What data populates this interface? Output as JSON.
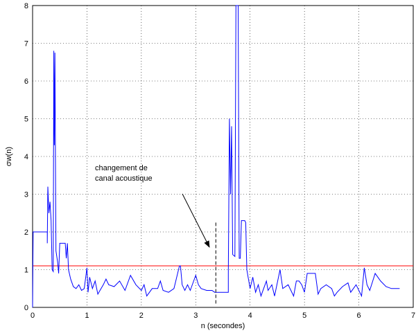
{
  "chart_data": {
    "type": "line",
    "xlabel": "n (secondes)",
    "ylabel": "σw(n)",
    "x": [
      0,
      0.01,
      0.27,
      0.27,
      0.28,
      0.3,
      0.32,
      0.34,
      0.36,
      0.38,
      0.39,
      0.4,
      0.41,
      0.43,
      0.46,
      0.48,
      0.5,
      0.6,
      0.62,
      0.64,
      0.66,
      0.7,
      0.75,
      0.8,
      0.85,
      0.9,
      0.95,
      1.0,
      1.02,
      1.05,
      1.1,
      1.15,
      1.2,
      1.3,
      1.35,
      1.4,
      1.5,
      1.6,
      1.7,
      1.8,
      1.9,
      2.0,
      2.05,
      2.1,
      2.2,
      2.3,
      2.35,
      2.4,
      2.5,
      2.6,
      2.7,
      2.72,
      2.75,
      2.8,
      2.85,
      2.9,
      3.0,
      3.05,
      3.1,
      3.2,
      3.3,
      3.35,
      3.6,
      3.6,
      3.62,
      3.64,
      3.66,
      3.68,
      3.72,
      3.74,
      3.78,
      3.8,
      3.82,
      3.84,
      3.9,
      3.92,
      3.94,
      4.0,
      4.05,
      4.1,
      4.15,
      4.2,
      4.3,
      4.33,
      4.4,
      4.45,
      4.55,
      4.6,
      4.7,
      4.8,
      4.85,
      4.9,
      4.95,
      5.0,
      5.05,
      5.2,
      5.25,
      5.3,
      5.4,
      5.5,
      5.55,
      5.6,
      5.7,
      5.8,
      5.85,
      5.95,
      6.05,
      6.1,
      6.15,
      6.2,
      6.3,
      6.4,
      6.5,
      6.6,
      6.75
    ],
    "series": [
      {
        "color": "#0000ff",
        "values": [
          0,
          2.0,
          2.0,
          1.7,
          3.2,
          2.5,
          2.8,
          2.3,
          1.0,
          0.95,
          6.8,
          4.3,
          6.75,
          1.5,
          1.2,
          0.9,
          1.7,
          1.7,
          1.3,
          1.7,
          1.0,
          0.75,
          0.55,
          0.5,
          0.6,
          0.45,
          0.5,
          1.05,
          0.4,
          0.8,
          0.5,
          0.7,
          0.35,
          0.6,
          0.75,
          0.6,
          0.55,
          0.7,
          0.45,
          0.85,
          0.6,
          0.45,
          0.6,
          0.3,
          0.5,
          0.5,
          0.7,
          0.45,
          0.4,
          0.5,
          1.1,
          1.1,
          0.6,
          0.45,
          0.6,
          0.45,
          0.85,
          0.6,
          0.5,
          0.45,
          0.45,
          0.4,
          0.4,
          0.9,
          5.0,
          3.0,
          4.8,
          1.4,
          1.35,
          8.0,
          8.0,
          1.3,
          1.3,
          2.3,
          2.3,
          2.25,
          1.0,
          0.5,
          0.8,
          0.4,
          0.6,
          0.3,
          0.7,
          0.45,
          0.6,
          0.3,
          1.0,
          0.5,
          0.6,
          0.3,
          0.7,
          0.7,
          0.6,
          0.4,
          0.9,
          0.9,
          0.35,
          0.5,
          0.6,
          0.5,
          0.3,
          0.4,
          0.55,
          0.65,
          0.4,
          0.6,
          0.3,
          1.05,
          0.6,
          0.45,
          0.9,
          0.7,
          0.55,
          0.5,
          0.5
        ]
      }
    ],
    "threshold": {
      "value": 1.1,
      "color": "#ff0000"
    },
    "event": {
      "x": 3.37,
      "ylim": [
        0.1,
        2.3
      ]
    },
    "annotation": [
      "changement de",
      "canal acoustique"
    ],
    "xlim": [
      0,
      7
    ],
    "ylim": [
      0,
      8
    ],
    "xticks": [
      0,
      1,
      2,
      3,
      4,
      5,
      6,
      7
    ],
    "yticks": [
      0,
      1,
      2,
      3,
      4,
      5,
      6,
      7,
      8
    ],
    "grid": true
  }
}
